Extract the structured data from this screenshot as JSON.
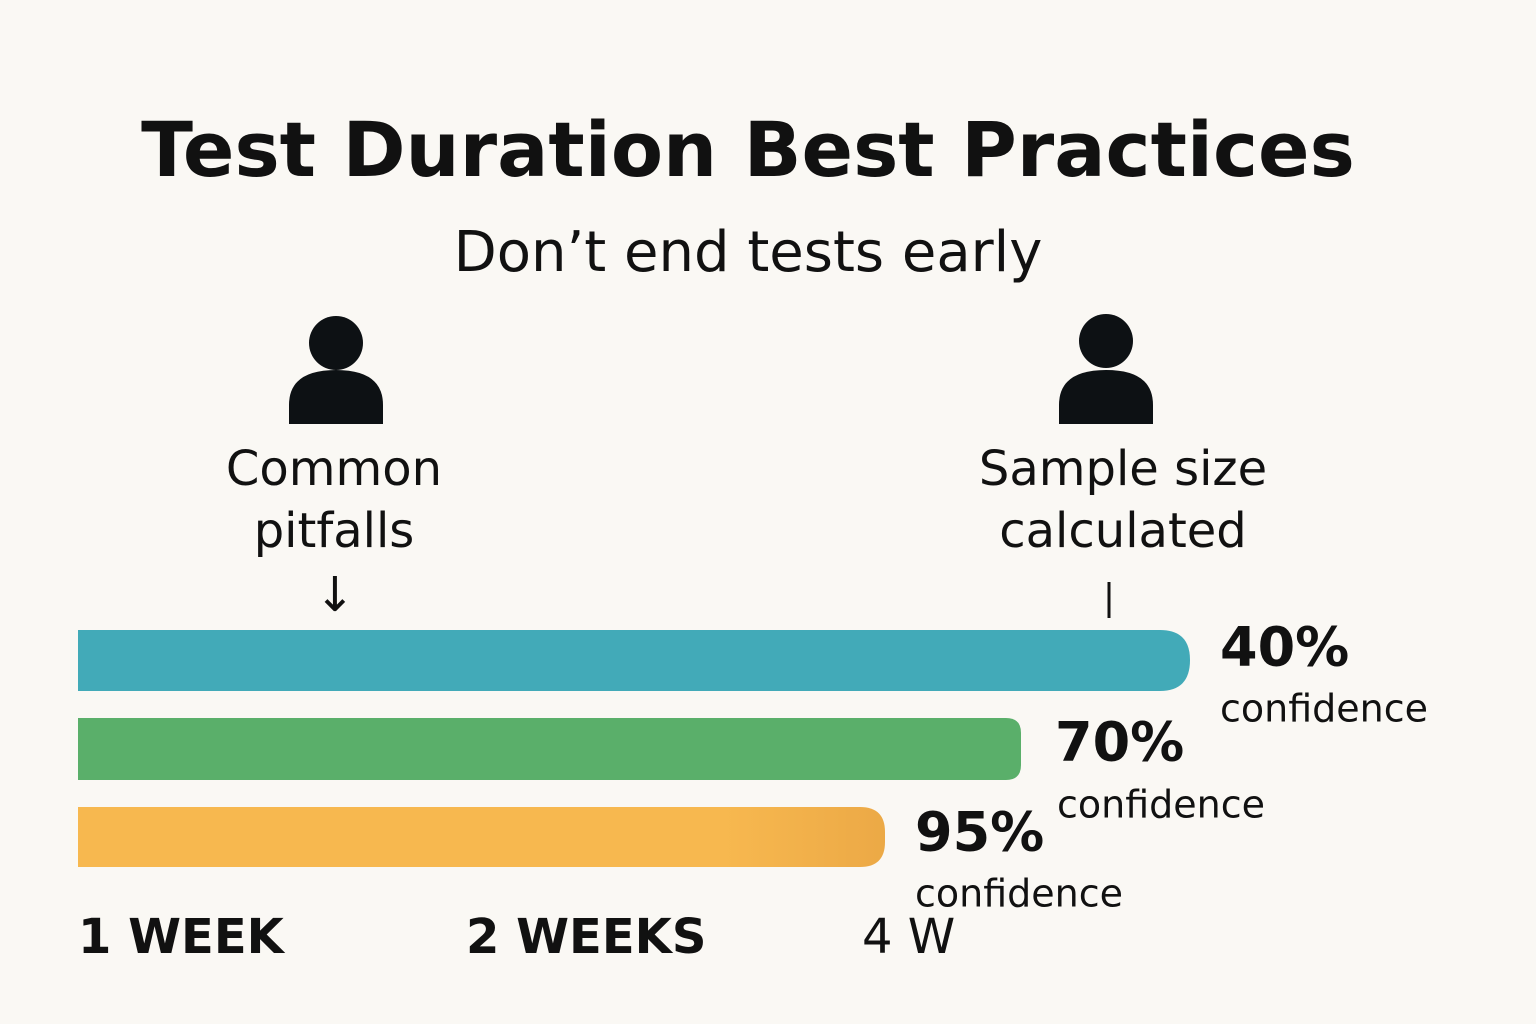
{
  "header": {
    "title": "Test Duration Best Practices",
    "subtitle": "Don’t end tests early"
  },
  "personas": [
    {
      "lines": [
        "Common",
        "pitfalls"
      ],
      "marker": "↓"
    },
    {
      "lines": [
        "Sample size",
        "calculated"
      ]
    }
  ],
  "bars": [
    {
      "label": "40%",
      "caption": "confidence"
    },
    {
      "label": "70%",
      "caption": "confidence"
    },
    {
      "label": "95%",
      "caption": "confidence"
    }
  ],
  "timeline": [
    "1 WEEK",
    "2 WEEKS",
    "4 W"
  ]
}
